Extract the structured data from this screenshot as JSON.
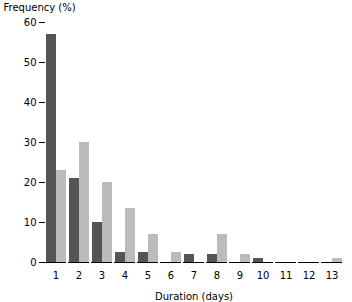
{
  "chart_data": {
    "type": "bar",
    "xlabel": "Duration (days)",
    "ylabel": "Frequency (%)",
    "categories": [
      1,
      2,
      3,
      4,
      5,
      6,
      7,
      8,
      9,
      10,
      11,
      12,
      13
    ],
    "series": [
      {
        "color": "#555555",
        "values": [
          57,
          21,
          10,
          2.5,
          2.5,
          0,
          2,
          2,
          0,
          1,
          0,
          0,
          0
        ]
      },
      {
        "color": "#bbbbbb",
        "values": [
          23,
          30,
          20,
          13.5,
          7,
          2.5,
          0,
          7,
          2,
          0,
          0,
          0,
          1
        ]
      }
    ],
    "ylim": [
      0,
      60
    ],
    "yticks": [
      0,
      10,
      20,
      30,
      40,
      50,
      60
    ]
  }
}
